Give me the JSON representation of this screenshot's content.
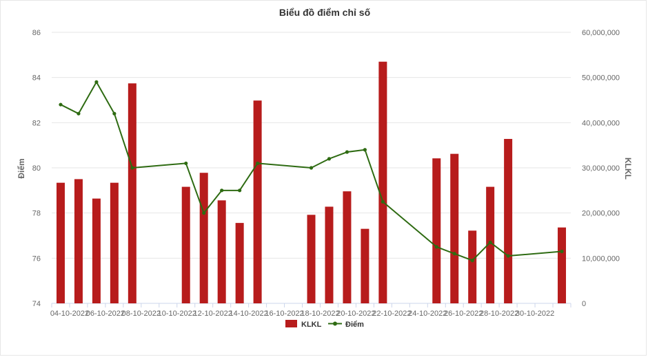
{
  "chart_data": {
    "type": "bar+line",
    "title": "Biểu đồ điểm chỉ số",
    "left_axis": {
      "title": "Điểm",
      "min": 74,
      "max": 86,
      "ticks": [
        74,
        76,
        78,
        80,
        82,
        84,
        86
      ]
    },
    "right_axis": {
      "title": "KLKL",
      "min": 0,
      "max": 60000000,
      "ticks": [
        "0",
        "10,000,000",
        "20,000,000",
        "30,000,000",
        "40,000,000",
        "50,000,000",
        "60,000,000"
      ]
    },
    "x_tick_labels": [
      "04-10-2022",
      "06-10-2022",
      "08-10-2022",
      "10-10-2022",
      "12-10-2022",
      "14-10-2022",
      "16-10-2022",
      "18-10-2022",
      "20-10-2022",
      "22-10-2022",
      "24-10-2022",
      "26-10-2022",
      "28-10-2022",
      "30-10-2022"
    ],
    "x_start_day": 3,
    "x_end_day": 31,
    "grid": true,
    "legend_position": "bottom",
    "series": [
      {
        "name": "KLKL",
        "type": "bar",
        "color": "#b71c1c",
        "days": [
          3,
          4,
          5,
          6,
          7,
          10,
          11,
          12,
          13,
          14,
          17,
          18,
          19,
          20,
          21,
          24,
          25,
          26,
          27,
          28,
          31
        ],
        "values": [
          26700000,
          27500000,
          23200000,
          26700000,
          48700000,
          25800000,
          28900000,
          22800000,
          17800000,
          44900000,
          19600000,
          21400000,
          24800000,
          16500000,
          53500000,
          32100000,
          33100000,
          16100000,
          25800000,
          36400000,
          16800000
        ]
      },
      {
        "name": "Điểm",
        "type": "line",
        "color": "#2e6b12",
        "days": [
          3,
          4,
          5,
          6,
          7,
          10,
          11,
          12,
          13,
          14,
          17,
          18,
          19,
          20,
          21,
          24,
          25,
          26,
          27,
          28,
          31
        ],
        "values": [
          82.8,
          82.4,
          83.8,
          82.4,
          80.0,
          80.2,
          78.0,
          79.0,
          79.0,
          80.2,
          80.0,
          80.4,
          80.7,
          80.8,
          78.5,
          76.5,
          76.2,
          75.9,
          76.7,
          76.1,
          76.3
        ]
      }
    ]
  }
}
